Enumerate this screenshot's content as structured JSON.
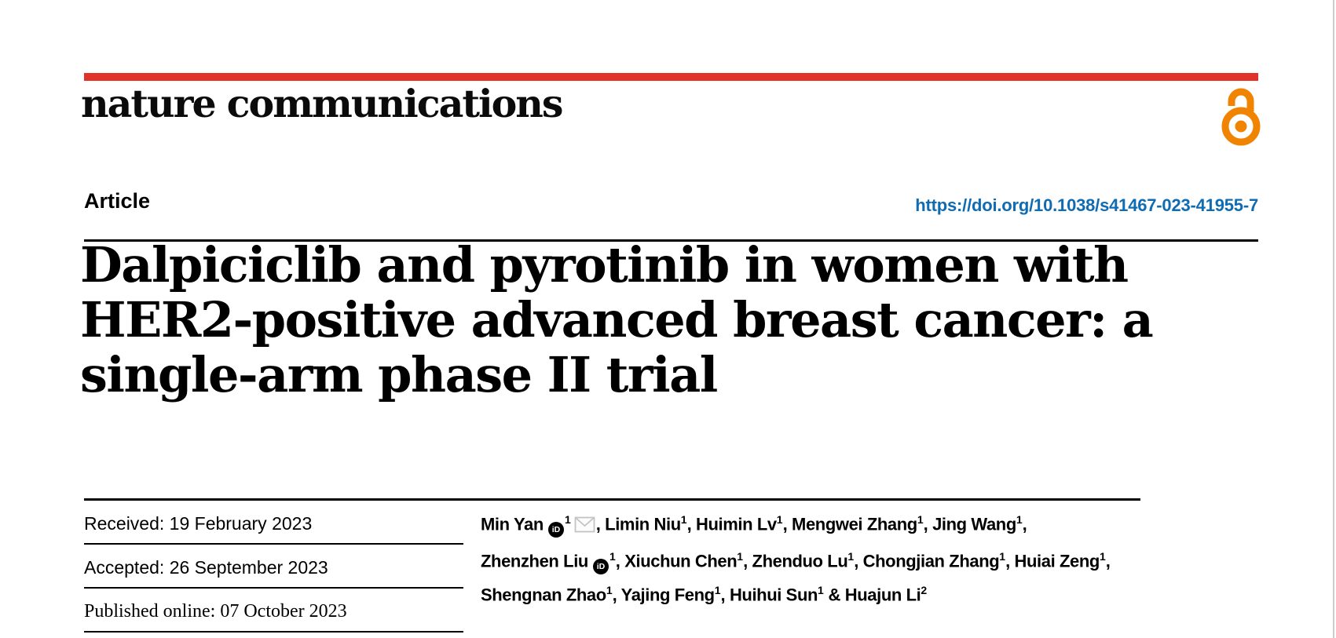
{
  "journal": {
    "name": "nature communications"
  },
  "header": {
    "article_type": "Article",
    "doi": "https://doi.org/10.1038/s41467-023-41955-7"
  },
  "title": {
    "lines": [
      "Dalpiciclib and pyrotinib in women with",
      "HER2-positive advanced breast cancer: a",
      "single-arm phase II trial"
    ]
  },
  "dates": [
    {
      "label": "Received:",
      "value": "19 February 2023"
    },
    {
      "label": "Accepted:",
      "value": "26 September 2023"
    },
    {
      "label": "Published online:",
      "value": "07 October 2023"
    }
  ],
  "authors": {
    "lines": [
      {
        "segments": [
          {
            "name": "Min Yan",
            "orcid": true,
            "sup": "1",
            "envelope": true,
            "tail": ", "
          },
          {
            "name": "Limin Niu",
            "sup": "1",
            "tail": ", "
          },
          {
            "name": "Huimin Lv",
            "sup": "1",
            "tail": ", "
          },
          {
            "name": "Mengwei Zhang",
            "sup": "1",
            "tail": ", "
          },
          {
            "name": "Jing Wang",
            "sup": "1",
            "tail": ","
          }
        ]
      },
      {
        "segments": [
          {
            "name": "Zhenzhen Liu",
            "orcid": true,
            "sup": "1",
            "tail": ", "
          },
          {
            "name": "Xiuchun Chen",
            "sup": "1",
            "tail": ", "
          },
          {
            "name": "Zhenduo Lu",
            "sup": "1",
            "tail": ", "
          },
          {
            "name": "Chongjian Zhang",
            "sup": "1",
            "tail": ", "
          },
          {
            "name": "Huiai Zeng",
            "sup": "1",
            "tail": ","
          }
        ]
      },
      {
        "segments": [
          {
            "name": "Shengnan Zhao",
            "sup": "1",
            "tail": ", "
          },
          {
            "name": "Yajing Feng",
            "sup": "1",
            "tail": ", "
          },
          {
            "name": "Huihui Sun",
            "sup": "1",
            "tail": " & "
          },
          {
            "name": "Huajun Li",
            "sup": "2",
            "tail": ""
          }
        ]
      }
    ]
  },
  "icons": {
    "orcid_badge_text": "iD",
    "open_access": "open-padlock",
    "email": "envelope"
  },
  "colors": {
    "brand_red": "#e23128",
    "open_access_orange": "#f08300",
    "link_blue": "#0f6cb2",
    "rule_black": "#000000",
    "envelope_gray": "#c4c4c4",
    "page_edge_gray": "#cccccc"
  }
}
